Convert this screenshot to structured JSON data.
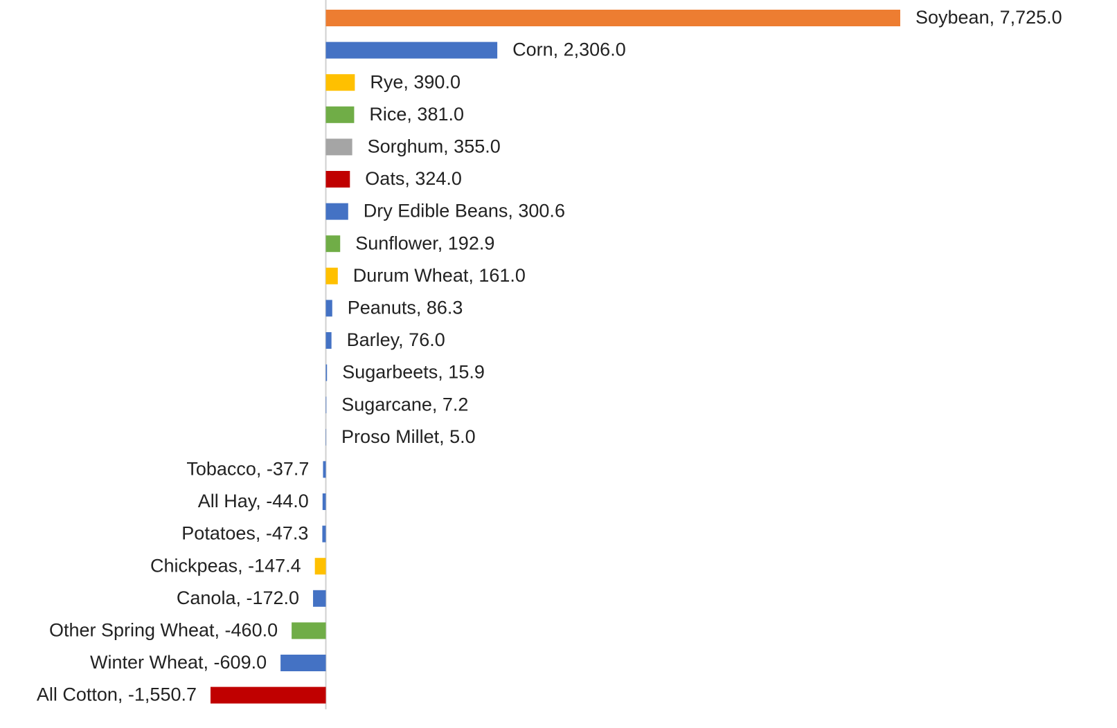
{
  "chart_data": {
    "type": "bar",
    "orientation": "horizontal",
    "values": [
      7725.0,
      2306.0,
      390.0,
      381.0,
      355.0,
      324.0,
      300.6,
      192.9,
      161.0,
      86.3,
      76.0,
      15.9,
      7.2,
      5.0,
      -37.7,
      -44.0,
      -47.3,
      -147.4,
      -172.0,
      -460.0,
      -609.0,
      -1550.7
    ],
    "value_labels": [
      "Soybean, 7,725.0",
      "Corn, 2,306.0",
      "Rye, 390.0",
      "Rice, 381.0",
      "Sorghum, 355.0",
      "Oats, 324.0",
      "Dry Edible Beans, 300.6",
      "Sunflower, 192.9",
      "Durum Wheat, 161.0",
      "Peanuts, 86.3",
      "Barley, 76.0",
      "Sugarbeets, 15.9",
      "Sugarcane, 7.2",
      "Proso Millet, 5.0",
      "Tobacco, -37.7",
      "All Hay, -44.0",
      "Potatoes, -47.3",
      "Chickpeas, -147.4",
      "Canola, -172.0",
      "Other Spring Wheat, -460.0",
      "Winter Wheat, -609.0",
      "All Cotton, -1,550.7"
    ],
    "colors": [
      "#ED7D31",
      "#4472C4",
      "#FFC000",
      "#70AD47",
      "#A5A5A5",
      "#C00000",
      "#4472C4",
      "#70AD47",
      "#FFC000",
      "#4472C4",
      "#4472C4",
      "#4472C4",
      "#4472C4",
      "#4472C4",
      "#4472C4",
      "#4472C4",
      "#4472C4",
      "#FFC000",
      "#4472C4",
      "#70AD47",
      "#4472C4",
      "#C00000"
    ]
  }
}
